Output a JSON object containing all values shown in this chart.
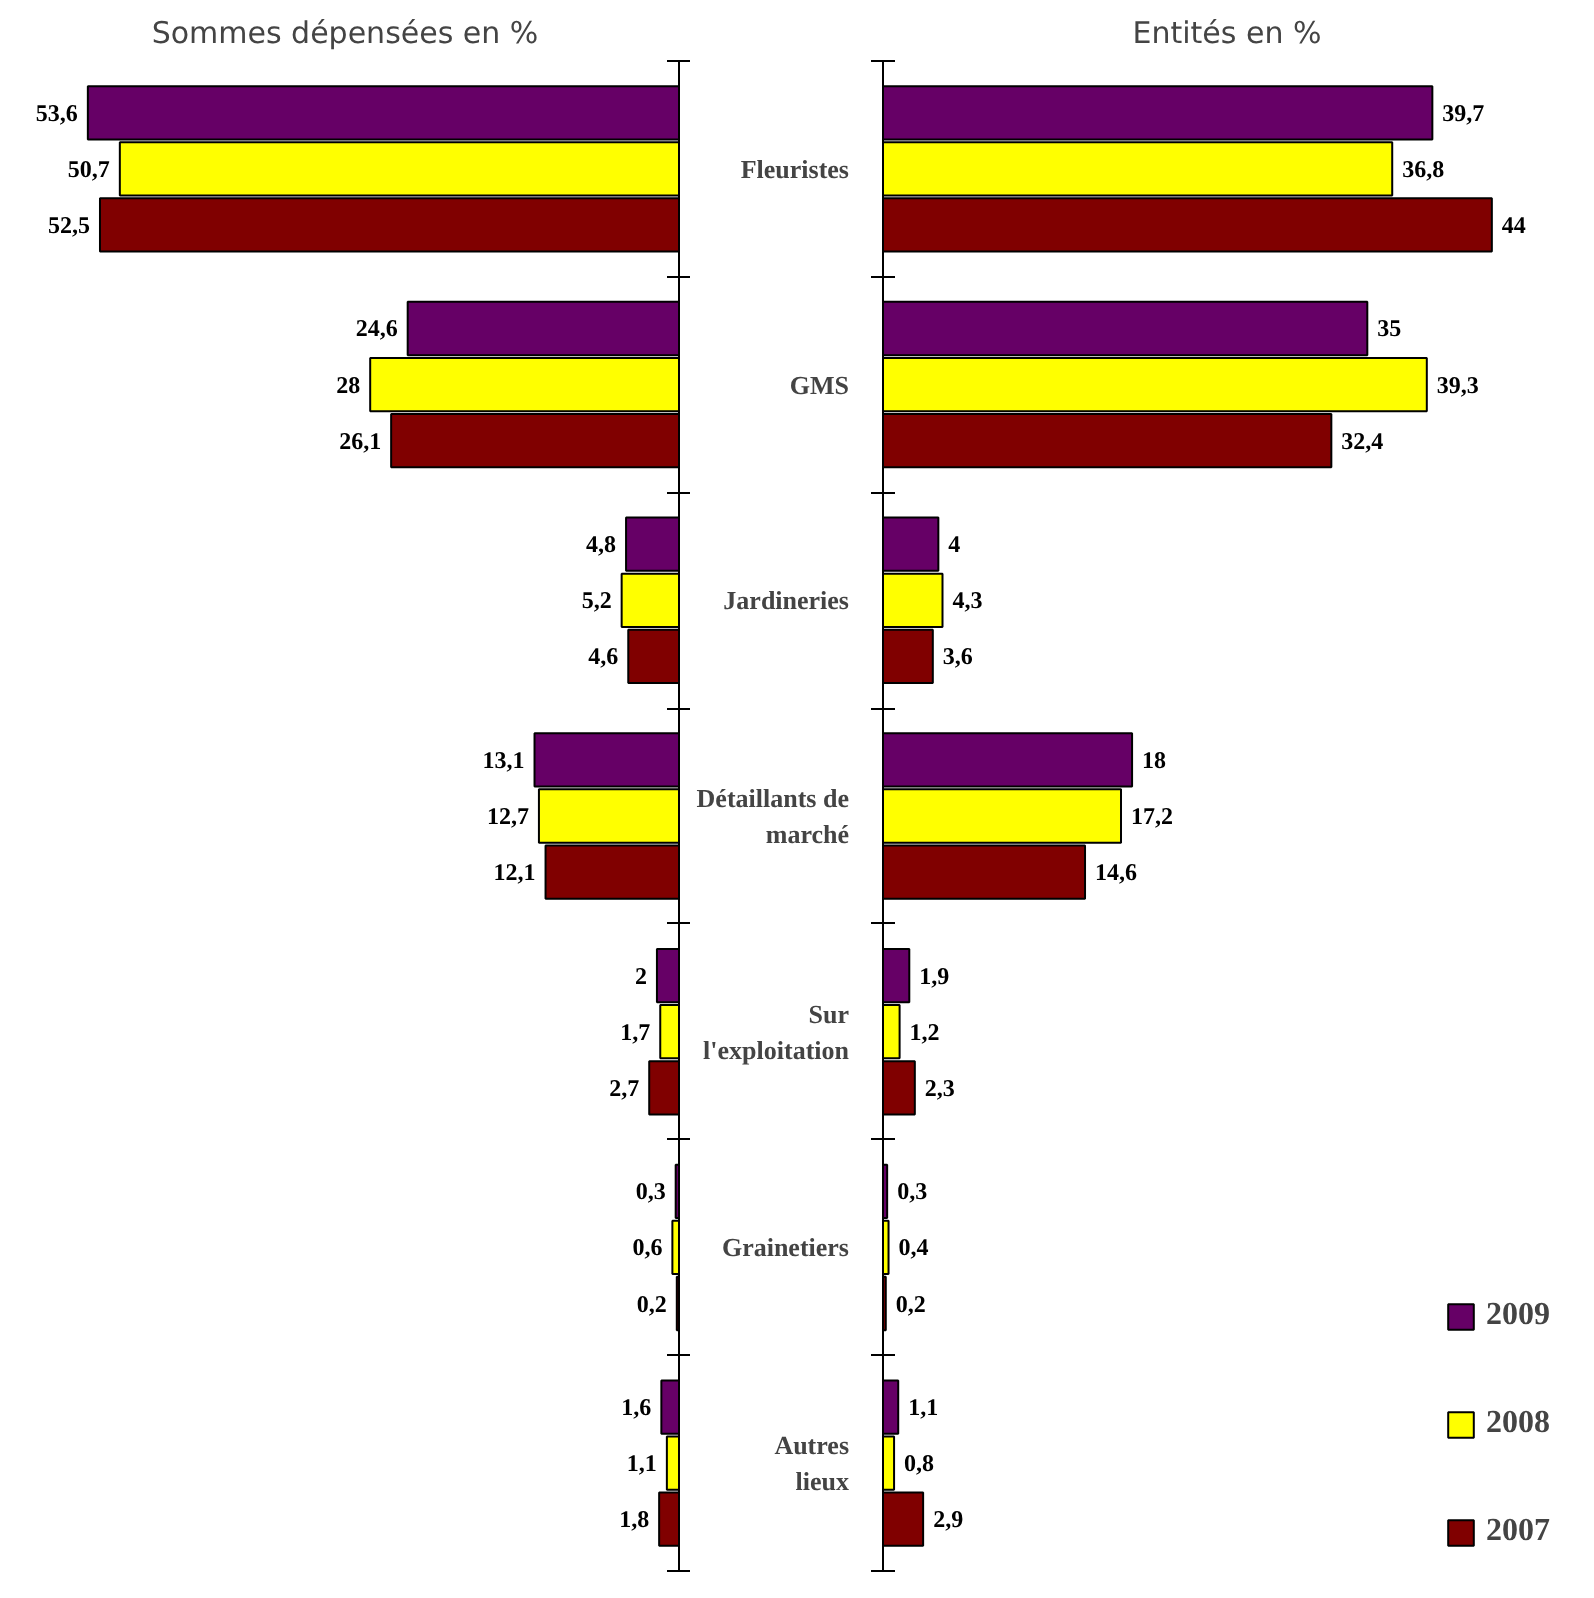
{
  "chart_data": [
    {
      "type": "bar",
      "orientation": "horizontal",
      "title": "Sommes dépensées en %",
      "categories": [
        "Fleuristes",
        "GMS",
        "Jardineries",
        "Détaillants de marché",
        "Sur l'exploitation",
        "Grainetiers",
        "Autres lieux"
      ],
      "tick_labels": false,
      "legend": false,
      "series": [
        {
          "color": "#660066",
          "values": [
            53.6,
            24.6,
            4.8,
            13.1,
            2,
            0.3,
            1.6
          ],
          "value_labels": [
            "53,6",
            "24,6",
            "4,8",
            "13,1",
            "2",
            "0,3",
            "1,6"
          ]
        },
        {
          "color": "#ffff00",
          "values": [
            50.7,
            28,
            5.2,
            12.7,
            1.7,
            0.6,
            1.1
          ],
          "value_labels": [
            "50,7",
            "28",
            "5,2",
            "12,7",
            "1,7",
            "0,6",
            "1,1"
          ]
        },
        {
          "color": "#800000",
          "values": [
            52.5,
            26.1,
            4.6,
            12.1,
            2.7,
            0.2,
            1.8
          ],
          "value_labels": [
            "52,5",
            "26,1",
            "4,6",
            "12,1",
            "2,7",
            "0,2",
            "1,8"
          ]
        }
      ]
    },
    {
      "type": "bar",
      "orientation": "horizontal",
      "title": "Entités en %",
      "categories": [
        "Fleuristes",
        "GMS",
        "Jardineries",
        "Détaillants de marché",
        "Sur l'exploitation",
        "Grainetiers",
        "Autres lieux"
      ],
      "tick_labels": "y",
      "legend": "bottom right",
      "series": [
        {
          "name": "2009",
          "color": "#660066",
          "values": [
            39.7,
            35,
            4,
            18,
            1.9,
            0.3,
            1.1
          ],
          "value_labels": [
            "39,7",
            "35",
            "4",
            "18",
            "1,9",
            "0,3",
            "1,1"
          ]
        },
        {
          "name": "2008",
          "color": "#ffff00",
          "values": [
            36.8,
            39.3,
            4.3,
            17.2,
            1.2,
            0.4,
            0.8
          ],
          "value_labels": [
            "36,8",
            "39,3",
            "4,3",
            "17,2",
            "1,2",
            "0,4",
            "0,8"
          ]
        },
        {
          "name": "2007",
          "color": "#800000",
          "values": [
            44,
            32.4,
            3.6,
            14.6,
            2.3,
            0.2,
            2.9
          ],
          "value_labels": [
            "44",
            "32,4",
            "3,6",
            "14,6",
            "2,3",
            "0,2",
            "2,9"
          ]
        }
      ]
    }
  ]
}
